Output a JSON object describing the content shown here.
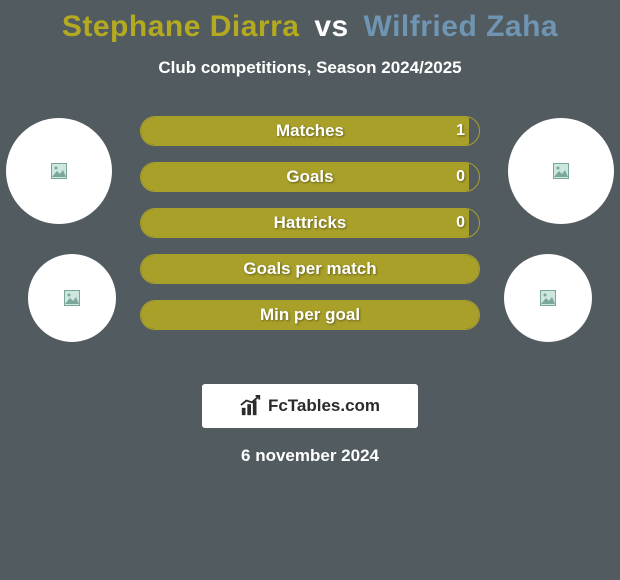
{
  "background_color": "#525b60",
  "text_color": "#ffffff",
  "title": {
    "player1": "Stephane Diarra",
    "player1_color": "#b4aa1f",
    "vs": "vs",
    "vs_color": "#ffffff",
    "player2": "Wilfried Zaha",
    "player2_color": "#7095b2",
    "fontsize": 30
  },
  "subtitle": {
    "text": "Club competitions, Season 2024/2025",
    "fontsize": 17,
    "color": "#ffffff"
  },
  "circles": {
    "fill_color": "#ffffff",
    "placeholder_border": "#7aa69c",
    "placeholder_fill": "#cde6de"
  },
  "stats": {
    "bar_fill_color": "#a8a029",
    "bar_border_color": "#a8a029",
    "bar_track_color": "rgba(0,0,0,0)",
    "label_color": "#ffffff",
    "value_color": "#ffffff",
    "rows": [
      {
        "label": "Matches",
        "value": "1",
        "fill_pct": 97
      },
      {
        "label": "Goals",
        "value": "0",
        "fill_pct": 97
      },
      {
        "label": "Hattricks",
        "value": "0",
        "fill_pct": 97
      },
      {
        "label": "Goals per match",
        "value": "",
        "fill_pct": 100
      },
      {
        "label": "Min per goal",
        "value": "",
        "fill_pct": 100
      }
    ]
  },
  "brand": {
    "box_color": "#ffffff",
    "text_color": "#2b2b2b",
    "text": "FcTables.com"
  },
  "date": {
    "text": "6 november 2024",
    "color": "#ffffff",
    "fontsize": 17
  }
}
